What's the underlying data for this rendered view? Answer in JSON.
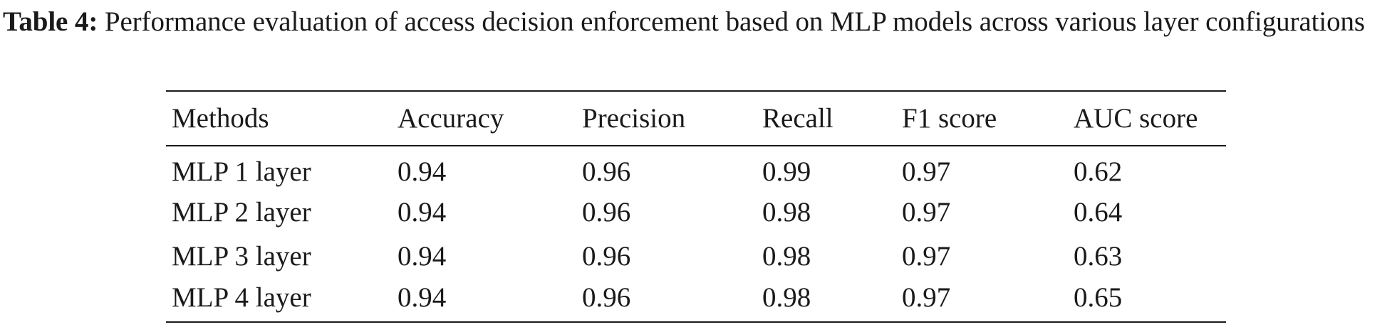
{
  "caption": {
    "label": "Table 4:",
    "text": " Performance evaluation of access decision enforcement based on MLP models across various layer configurations"
  },
  "table": {
    "headers": [
      "Methods",
      "Accuracy",
      "Precision",
      "Recall",
      "F1 score",
      "AUC score"
    ],
    "rows": [
      [
        "MLP 1 layer",
        "0.94",
        "0.96",
        "0.99",
        "0.97",
        "0.62"
      ],
      [
        "MLP 2 layer",
        "0.94",
        "0.96",
        "0.98",
        "0.97",
        "0.64"
      ],
      [
        "MLP 3 layer",
        "0.94",
        "0.96",
        "0.98",
        "0.97",
        "0.63"
      ],
      [
        "MLP 4 layer",
        "0.94",
        "0.96",
        "0.98",
        "0.97",
        "0.65"
      ]
    ]
  }
}
